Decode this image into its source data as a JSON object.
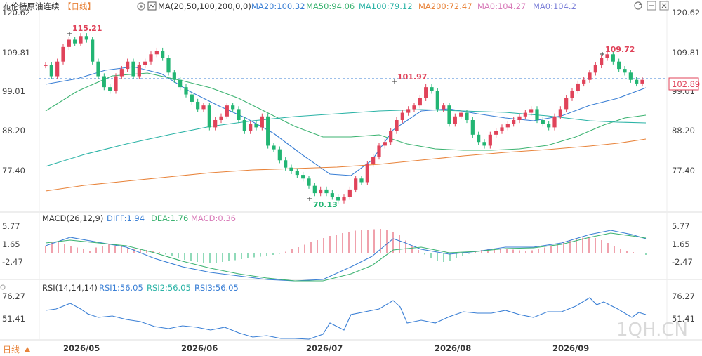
{
  "header": {
    "title": "布伦特原油连续",
    "period": "【日线】",
    "ma_label": "MA(20,50,100,200,0,0)",
    "ma_items": [
      {
        "text": "MA20:100.32",
        "color": "#3a7fd5"
      },
      {
        "text": "MA50:94.06",
        "color": "#3cb371"
      },
      {
        "text": "MA100:79.12",
        "color": "#2bb3a6"
      },
      {
        "text": "MA200:72.47",
        "color": "#e8833a"
      },
      {
        "text": "MA0:104.27",
        "color": "#d87ab8"
      },
      {
        "text": "MA0:104.2",
        "color": "#7b7fd8"
      }
    ]
  },
  "macd": {
    "label": "MACD(26,12,9)",
    "diff": "DIFF:1.94",
    "dea": "DEA:1.76",
    "macd": "MACD:0.36",
    "ticks": [
      "5.77",
      "1.65",
      "-2.47"
    ]
  },
  "rsi": {
    "label": "RSI(14,14,14)",
    "rsi1": "RSI1:56.05",
    "rsi2": "RSI2:56.05",
    "rsi3": "RSI3:56.05",
    "ticks": [
      "76.27",
      "51.41"
    ]
  },
  "footer": {
    "period_button": "日线",
    "dates": [
      "2026/05",
      "2026/06",
      "2026/07",
      "2026/08",
      "2026/09"
    ]
  },
  "watermark": "1QH.CN",
  "colors": {
    "up": "#e0435a",
    "down": "#22b573",
    "accent": "#e0435a"
  },
  "chart_data": {
    "type": "candlestick",
    "y_ticks": [
      "120.62",
      "109.81",
      "99.01",
      "88.20",
      "77.40"
    ],
    "last_price": "102.89",
    "annotations": {
      "high1": "115.21",
      "low": "70.13",
      "high2": "101.97",
      "high3": "109.72"
    }
  }
}
